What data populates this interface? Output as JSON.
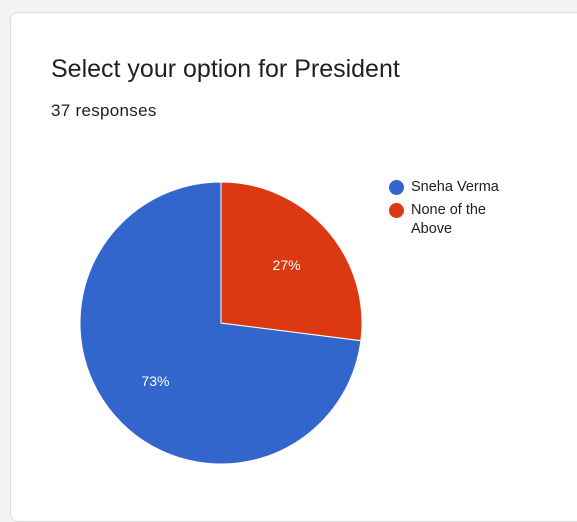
{
  "question": {
    "title": "Select your option for President",
    "responses_text": "37 responses"
  },
  "colors": {
    "series": [
      "#3366cc",
      "#dc3912"
    ],
    "slice_label": "#ffffff"
  },
  "chart_data": {
    "type": "pie",
    "title": "Select your option for President",
    "slices": [
      {
        "label": "Sneha Verma",
        "value": 73,
        "display": "73%"
      },
      {
        "label": "None of the Above",
        "value": 27,
        "display": "27%"
      }
    ],
    "legend_placement": "right"
  }
}
